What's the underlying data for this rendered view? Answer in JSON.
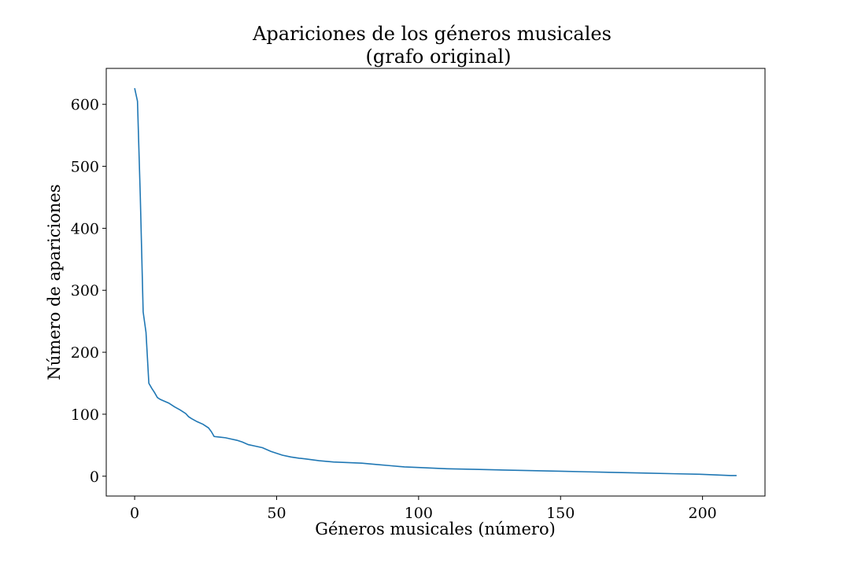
{
  "chart_data": {
    "type": "line",
    "title_line1": "Apariciones de los géneros musicales",
    "title_line2": "(grafo original)",
    "xlabel": "Géneros musicales (número)",
    "ylabel": "Número de apariciones",
    "xlim": [
      -10,
      222
    ],
    "ylim": [
      -32,
      658
    ],
    "xticks": [
      0,
      50,
      100,
      150,
      200
    ],
    "yticks": [
      0,
      100,
      200,
      300,
      400,
      500,
      600
    ],
    "grid": false,
    "line_color": "#1f77b4",
    "series": [
      {
        "x": [
          0,
          1,
          2,
          3,
          4,
          5,
          6,
          7,
          8,
          9,
          10,
          12,
          14,
          16,
          18,
          19,
          20,
          22,
          24,
          26,
          27,
          28,
          30,
          32,
          34,
          36,
          38,
          40,
          42,
          45,
          48,
          50,
          52,
          55,
          58,
          60,
          65,
          70,
          75,
          80,
          85,
          90,
          95,
          100,
          110,
          120,
          130,
          140,
          150,
          160,
          170,
          180,
          190,
          200,
          205,
          210,
          212
        ],
        "y": [
          626,
          605,
          450,
          265,
          232,
          150,
          142,
          135,
          127,
          124,
          122,
          118,
          112,
          107,
          101,
          96,
          93,
          88,
          84,
          78,
          72,
          64,
          63,
          62,
          60,
          58,
          55,
          51,
          49,
          46,
          40,
          37,
          34,
          31,
          29,
          28,
          25,
          23,
          22,
          21,
          19,
          17,
          15,
          14,
          12,
          11,
          10,
          9,
          8,
          7,
          6,
          5,
          4,
          3,
          2,
          1,
          1
        ]
      }
    ]
  }
}
